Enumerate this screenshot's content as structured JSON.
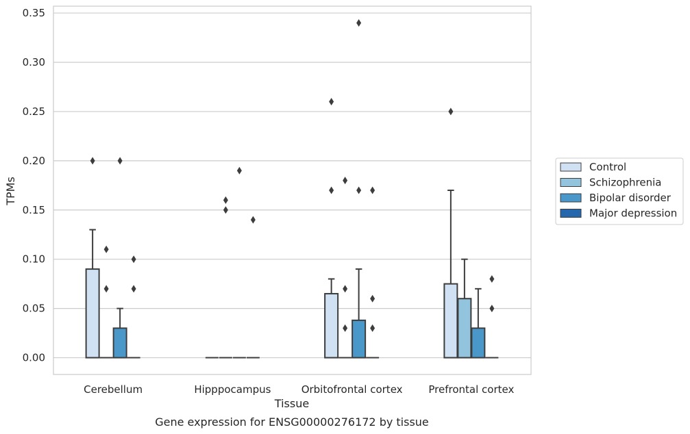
{
  "chart_data": {
    "type": "box",
    "xlabel": "Tissue",
    "ylabel": "TPMs",
    "caption": "Gene expression for ENSG00000276172 by tissue",
    "ylim": [
      -0.017,
      0.357
    ],
    "yticks": [
      "0.00",
      "0.05",
      "0.10",
      "0.15",
      "0.20",
      "0.25",
      "0.30",
      "0.35"
    ],
    "grid": "horizontal",
    "legend_placement": "outside-right",
    "categories": [
      "Cerebellum",
      "Hipppocampus",
      "Orbitofrontal cortex",
      "Prefrontal cortex"
    ],
    "series": [
      {
        "name": "Control",
        "color": "#cfe1f2",
        "boxes": [
          {
            "q1": 0.0,
            "median": 0.0,
            "q3": 0.09,
            "whisker_low": 0.0,
            "whisker_high": 0.13,
            "outliers": [
              0.2
            ]
          },
          {
            "q1": 0.0,
            "median": 0.0,
            "q3": 0.0,
            "whisker_low": 0.0,
            "whisker_high": 0.0,
            "outliers": []
          },
          {
            "q1": 0.0,
            "median": 0.0,
            "q3": 0.065,
            "whisker_low": 0.0,
            "whisker_high": 0.08,
            "outliers": [
              0.17,
              0.26
            ]
          },
          {
            "q1": 0.0,
            "median": 0.0,
            "q3": 0.075,
            "whisker_low": 0.0,
            "whisker_high": 0.17,
            "outliers": [
              0.25
            ]
          }
        ]
      },
      {
        "name": "Schizophrenia",
        "color": "#93c4de",
        "boxes": [
          {
            "q1": 0.0,
            "median": 0.0,
            "q3": 0.0,
            "whisker_low": 0.0,
            "whisker_high": 0.0,
            "outliers": [
              0.07,
              0.11
            ]
          },
          {
            "q1": 0.0,
            "median": 0.0,
            "q3": 0.0,
            "whisker_low": 0.0,
            "whisker_high": 0.0,
            "outliers": [
              0.15,
              0.16
            ]
          },
          {
            "q1": 0.0,
            "median": 0.0,
            "q3": 0.0,
            "whisker_low": 0.0,
            "whisker_high": 0.0,
            "outliers": [
              0.03,
              0.07,
              0.18
            ]
          },
          {
            "q1": 0.0,
            "median": 0.0,
            "q3": 0.06,
            "whisker_low": 0.0,
            "whisker_high": 0.1,
            "outliers": []
          }
        ]
      },
      {
        "name": "Bipolar disorder",
        "color": "#4a98c9",
        "boxes": [
          {
            "q1": 0.0,
            "median": 0.0,
            "q3": 0.03,
            "whisker_low": 0.0,
            "whisker_high": 0.05,
            "outliers": [
              0.2
            ]
          },
          {
            "q1": 0.0,
            "median": 0.0,
            "q3": 0.0,
            "whisker_low": 0.0,
            "whisker_high": 0.0,
            "outliers": [
              0.19
            ]
          },
          {
            "q1": 0.0,
            "median": 0.0,
            "q3": 0.038,
            "whisker_low": 0.0,
            "whisker_high": 0.09,
            "outliers": [
              0.17,
              0.34
            ]
          },
          {
            "q1": 0.0,
            "median": 0.0,
            "q3": 0.03,
            "whisker_low": 0.0,
            "whisker_high": 0.07,
            "outliers": []
          }
        ]
      },
      {
        "name": "Major depression",
        "color": "#2567ad",
        "boxes": [
          {
            "q1": 0.0,
            "median": 0.0,
            "q3": 0.0,
            "whisker_low": 0.0,
            "whisker_high": 0.0,
            "outliers": [
              0.07,
              0.1
            ]
          },
          {
            "q1": 0.0,
            "median": 0.0,
            "q3": 0.0,
            "whisker_low": 0.0,
            "whisker_high": 0.0,
            "outliers": [
              0.14
            ]
          },
          {
            "q1": 0.0,
            "median": 0.0,
            "q3": 0.0,
            "whisker_low": 0.0,
            "whisker_high": 0.0,
            "outliers": [
              0.03,
              0.06,
              0.17
            ]
          },
          {
            "q1": 0.0,
            "median": 0.0,
            "q3": 0.0,
            "whisker_low": 0.0,
            "whisker_high": 0.0,
            "outliers": [
              0.05,
              0.08
            ]
          }
        ]
      }
    ]
  }
}
